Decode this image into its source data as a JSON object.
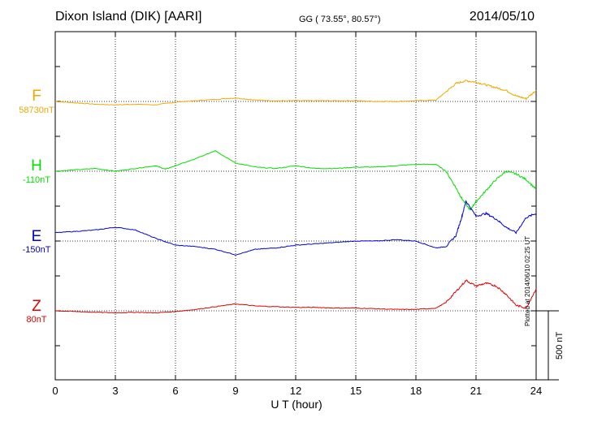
{
  "header": {
    "station": "Dixon Island (DIK)  [AARI]",
    "coords": "GG ( 73.55°,  80.57°)",
    "date": "2014/05/10"
  },
  "footer": {
    "plotted_note": "Plotted at 2014/06/10 02:25 UT",
    "scale_label": "500 nT"
  },
  "colors": {
    "F": "#f0a800",
    "H": "#00e000",
    "E": "#0000d8",
    "Z": "#e00000",
    "grid": "#000000"
  },
  "chart_data": {
    "type": "line",
    "title": "Dixon Island (DIK)  [AARI]",
    "xlabel": "U T (hour)",
    "ylabel": "",
    "xlim": [
      0,
      24
    ],
    "x_ticks": [
      0,
      3,
      6,
      9,
      12,
      15,
      18,
      21,
      24
    ],
    "scale_bar_nT": 500,
    "grid": true,
    "series": [
      {
        "name": "F",
        "baseline": "58730nT",
        "x": [
          0,
          1,
          2,
          3,
          4,
          5,
          6,
          7,
          8,
          9,
          10,
          11,
          12,
          13,
          14,
          15,
          16,
          17,
          18,
          19,
          19.5,
          20,
          20.5,
          21,
          21.5,
          22,
          22.5,
          23,
          23.5,
          24
        ],
        "y": [
          0,
          -10,
          -20,
          -25,
          -20,
          -25,
          -5,
          5,
          15,
          25,
          10,
          5,
          5,
          5,
          5,
          5,
          0,
          0,
          5,
          10,
          70,
          130,
          150,
          140,
          120,
          100,
          80,
          40,
          20,
          80
        ]
      },
      {
        "name": "H",
        "baseline": "-110nT",
        "x": [
          0,
          1,
          2,
          3,
          4,
          5,
          5.5,
          6,
          7,
          8,
          8.3,
          9,
          10,
          11,
          12,
          13,
          14,
          15,
          16,
          17,
          18,
          19,
          19.5,
          20,
          20.3,
          20.7,
          21,
          21.5,
          22,
          22.5,
          23,
          23.5,
          24
        ],
        "y": [
          0,
          10,
          20,
          0,
          20,
          40,
          15,
          40,
          90,
          150,
          120,
          60,
          30,
          20,
          40,
          20,
          20,
          30,
          30,
          40,
          50,
          50,
          0,
          -120,
          -200,
          -280,
          -220,
          -140,
          -60,
          0,
          -20,
          -60,
          -130
        ]
      },
      {
        "name": "E",
        "baseline": "-150nT",
        "x": [
          0,
          1,
          2,
          3,
          4,
          5,
          6,
          7,
          8,
          9,
          10,
          11,
          12,
          13,
          14,
          15,
          16,
          17,
          18,
          19,
          19.5,
          20,
          20.3,
          20.5,
          21,
          21.5,
          22,
          22.5,
          23,
          23.5,
          24
        ],
        "y": [
          60,
          70,
          80,
          100,
          80,
          20,
          -30,
          -40,
          -60,
          -100,
          -60,
          -50,
          -30,
          -20,
          -10,
          0,
          0,
          10,
          0,
          -50,
          -40,
          40,
          180,
          290,
          180,
          200,
          160,
          100,
          60,
          170,
          200
        ]
      },
      {
        "name": "Z",
        "baseline": "80nT",
        "x": [
          0,
          1,
          2,
          3,
          4,
          5,
          6,
          7,
          8,
          9,
          10,
          11,
          12,
          13,
          14,
          15,
          16,
          17,
          18,
          19,
          19.5,
          20,
          20.5,
          21,
          21.5,
          22,
          22.5,
          23,
          23.5,
          24
        ],
        "y": [
          0,
          -5,
          -10,
          -15,
          -10,
          -15,
          -5,
          10,
          30,
          50,
          35,
          30,
          25,
          25,
          20,
          20,
          15,
          10,
          10,
          20,
          60,
          140,
          220,
          180,
          200,
          180,
          120,
          40,
          20,
          160
        ]
      }
    ]
  }
}
